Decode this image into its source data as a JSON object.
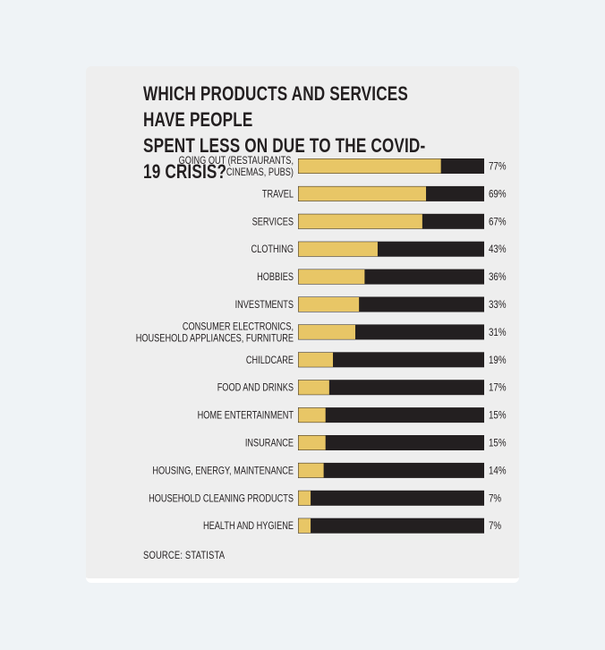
{
  "title": "WHICH PRODUCTS AND SERVICES HAVE PEOPLE\nSPENT LESS ON DUE TO THE COVID-19 CRISIS?",
  "source": "SOURCE: STATISTA",
  "colors": {
    "filled": "#e8c666",
    "remainder": "#231f20",
    "card": "#eeeeee",
    "page": "#eff3f6"
  },
  "chart_data": {
    "type": "bar",
    "orientation": "horizontal",
    "stacked_to_100": true,
    "title": "WHICH PRODUCTS AND SERVICES HAVE PEOPLE SPENT LESS ON DUE TO THE COVID-19 CRISIS?",
    "xlim": [
      0,
      100
    ],
    "categories": [
      [
        "GOING OUT (RESTAURANTS,",
        "CINEMAS, PUBS)"
      ],
      [
        "TRAVEL"
      ],
      [
        "SERVICES"
      ],
      [
        "CLOTHING"
      ],
      [
        "HOBBIES"
      ],
      [
        "INVESTMENTS"
      ],
      [
        "CONSUMER ELECTRONICS,",
        "HOUSEHOLD APPLIANCES, FURNITURE"
      ],
      [
        "CHILDCARE"
      ],
      [
        "FOOD AND DRINKS"
      ],
      [
        "HOME ENTERTAINMENT"
      ],
      [
        "INSURANCE"
      ],
      [
        "HOUSING, ENERGY, MAINTENANCE"
      ],
      [
        "HOUSEHOLD CLEANING PRODUCTS"
      ],
      [
        "HEALTH AND HYGIENE"
      ]
    ],
    "values": [
      77,
      69,
      67,
      43,
      36,
      33,
      31,
      19,
      17,
      15,
      15,
      14,
      7,
      7
    ],
    "value_labels": [
      "77%",
      "69%",
      "67%",
      "43%",
      "36%",
      "33%",
      "31%",
      "19%",
      "17%",
      "15%",
      "15%",
      "14%",
      "7%",
      "7%"
    ]
  }
}
